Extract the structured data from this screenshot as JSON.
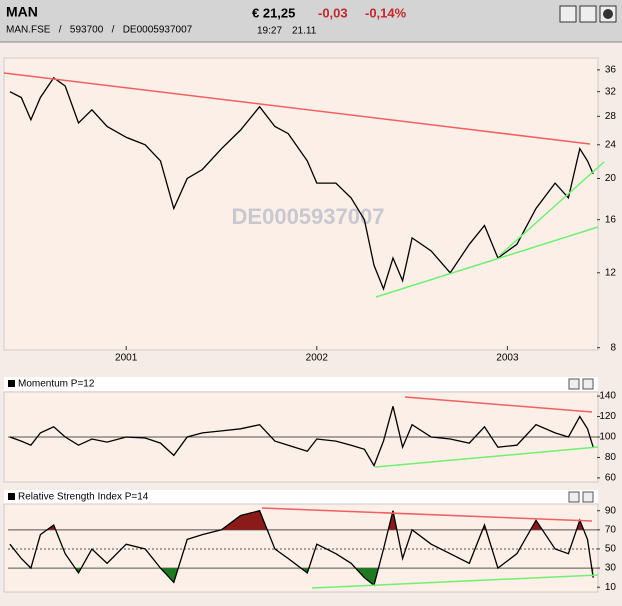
{
  "header": {
    "title": "MAN",
    "subtitle": "MAN.FSE   /   593700   /   DE0005937007",
    "price": "€ 21,25",
    "change": "-0,03",
    "change_pct": "-0,14%",
    "time": "19:27",
    "date": "21.11"
  },
  "watermark": "DE0005937007",
  "chart_data": [
    {
      "type": "line",
      "color": "#000000",
      "log_scale": true,
      "x": [
        2000.39,
        2000.45,
        2000.5,
        2000.55,
        2000.62,
        2000.68,
        2000.75,
        2000.82,
        2000.9,
        2001.0,
        2001.1,
        2001.18,
        2001.25,
        2001.32,
        2001.4,
        2001.5,
        2001.6,
        2001.7,
        2001.78,
        2001.85,
        2001.95,
        2002.0,
        2002.1,
        2002.18,
        2002.25,
        2002.3,
        2002.35,
        2002.4,
        2002.45,
        2002.5,
        2002.6,
        2002.7,
        2002.8,
        2002.88,
        2002.95,
        2003.05,
        2003.15,
        2003.25,
        2003.32,
        2003.38,
        2003.42,
        2003.45
      ],
      "values": [
        32,
        31,
        27.5,
        31,
        34.5,
        33,
        27,
        29,
        26.5,
        25,
        24,
        22,
        17,
        20,
        21,
        23.5,
        26,
        29.5,
        26.5,
        25.5,
        22,
        19.5,
        19.5,
        18,
        16,
        12.5,
        11,
        13,
        11.5,
        14.5,
        13.5,
        12,
        14,
        15.5,
        13,
        14,
        17,
        19.5,
        18,
        23.5,
        22,
        20.5
      ],
      "xlim": [
        2000.38,
        2003.47
      ],
      "xticks": [
        2001,
        2002,
        2003
      ],
      "ylim": [
        7.9,
        38.4
      ],
      "yticks": [
        8,
        12,
        16,
        20,
        24,
        28,
        32,
        36
      ]
    },
    {
      "type": "line",
      "title": "Momentum P=12",
      "color": "#000000",
      "x": [
        2000.39,
        2000.45,
        2000.5,
        2000.55,
        2000.62,
        2000.68,
        2000.75,
        2000.82,
        2000.9,
        2001.0,
        2001.1,
        2001.18,
        2001.25,
        2001.32,
        2001.4,
        2001.5,
        2001.6,
        2001.7,
        2001.78,
        2001.85,
        2001.95,
        2002.0,
        2002.1,
        2002.18,
        2002.25,
        2002.3,
        2002.35,
        2002.4,
        2002.45,
        2002.5,
        2002.6,
        2002.7,
        2002.8,
        2002.88,
        2002.95,
        2003.05,
        2003.15,
        2003.25,
        2003.32,
        2003.38,
        2003.42,
        2003.45
      ],
      "values": [
        100,
        96,
        92,
        104,
        110,
        100,
        92,
        98,
        95,
        100,
        99,
        94,
        82,
        100,
        104,
        106,
        108,
        112,
        96,
        92,
        86,
        98,
        96,
        92,
        88,
        72,
        96,
        130,
        90,
        112,
        100,
        98,
        94,
        110,
        90,
        92,
        112,
        104,
        100,
        120,
        108,
        90
      ],
      "xlim": [
        2000.38,
        2003.47
      ],
      "ylim": [
        56,
        144
      ],
      "yticks": [
        60,
        80,
        100,
        120,
        140
      ],
      "reference_lines": [
        100
      ]
    },
    {
      "type": "line",
      "title": "Relative Strength Index P=14",
      "color": "#000000",
      "x": [
        2000.39,
        2000.45,
        2000.5,
        2000.55,
        2000.62,
        2000.68,
        2000.75,
        2000.82,
        2000.9,
        2001.0,
        2001.1,
        2001.18,
        2001.25,
        2001.32,
        2001.4,
        2001.5,
        2001.6,
        2001.7,
        2001.78,
        2001.85,
        2001.95,
        2002.0,
        2002.1,
        2002.18,
        2002.25,
        2002.3,
        2002.35,
        2002.4,
        2002.45,
        2002.5,
        2002.6,
        2002.7,
        2002.8,
        2002.88,
        2002.95,
        2003.05,
        2003.15,
        2003.25,
        2003.32,
        2003.38,
        2003.42,
        2003.45
      ],
      "values": [
        55,
        40,
        30,
        65,
        75,
        45,
        25,
        50,
        35,
        55,
        50,
        30,
        15,
        60,
        65,
        70,
        85,
        90,
        50,
        40,
        25,
        55,
        45,
        35,
        20,
        12,
        50,
        90,
        40,
        70,
        55,
        45,
        35,
        75,
        30,
        45,
        80,
        50,
        45,
        80,
        60,
        20
      ],
      "xlim": [
        2000.38,
        2003.47
      ],
      "ylim": [
        5,
        97
      ],
      "yticks": [
        10,
        30,
        50,
        70,
        90
      ],
      "reference_lines": [
        30,
        50,
        70
      ],
      "high_color": "#8b1a1a",
      "low_color": "#1e7a1e"
    }
  ]
}
